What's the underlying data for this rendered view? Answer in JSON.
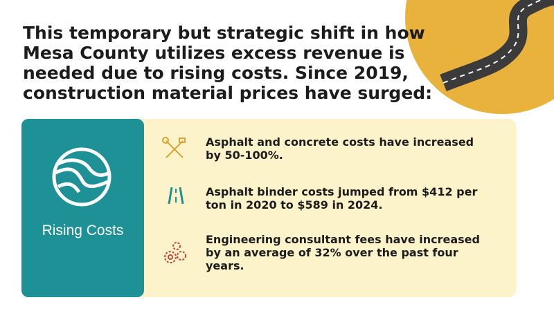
{
  "heading": {
    "lines": [
      "This temporary but strategic shift in how",
      "Mesa County utilizes excess revenue is",
      "needed due to rising costs. Since 2019,",
      "construction material prices have surged:"
    ]
  },
  "card": {
    "label": "Rising Costs",
    "items": [
      {
        "text": "Asphalt and concrete costs have increased by 50-100%."
      },
      {
        "text": "Asphalt binder costs jumped from $412 per ton in 2020 to $589 in 2024."
      },
      {
        "text": "Engineering consultant fees have increased by an average of 32% over the past four years."
      }
    ]
  }
}
